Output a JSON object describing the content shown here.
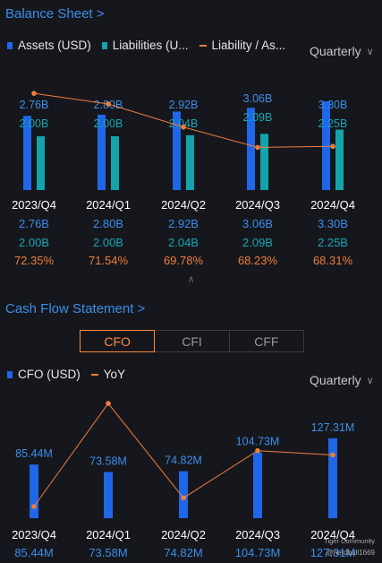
{
  "balance_sheet": {
    "title": "Balance Sheet >",
    "legend": {
      "assets": "Assets (USD)",
      "liabilities": "Liabilities (U...",
      "ratio": "Liability / As..."
    },
    "period_selector": "Quarterly",
    "colors": {
      "assets": "#1f66e8",
      "liabilities": "#14a3ad",
      "ratio": "#ef7e3c",
      "value_blue": "#3b8eea",
      "value_teal": "#18a7b3"
    },
    "quarters": [
      "2023/Q4",
      "2024/Q1",
      "2024/Q2",
      "2024/Q3",
      "2024/Q4"
    ],
    "assets_labels": [
      "2.76B",
      "2.80B",
      "2.92B",
      "3.06B",
      "3.30B"
    ],
    "liabilities_labels": [
      "2.00B",
      "2.00B",
      "2.04B",
      "2.09B",
      "2.25B"
    ],
    "ratio_labels": [
      "72.35%",
      "71.54%",
      "69.78%",
      "68.23%",
      "68.31%"
    ]
  },
  "collapse_icon": "chevron-up-icon",
  "cash_flow": {
    "title": "Cash Flow Statement >",
    "tabs": [
      "CFO",
      "CFI",
      "CFF"
    ],
    "active_tab": "CFO",
    "legend": {
      "cfo": "CFO (USD)",
      "yoy": "YoY"
    },
    "period_selector": "Quarterly",
    "quarters": [
      "2023/Q4",
      "2024/Q1",
      "2024/Q2",
      "2024/Q3",
      "2024/Q4"
    ],
    "cfo_labels": [
      "85.44M",
      "73.58M",
      "74.82M",
      "104.73M",
      "127.31M"
    ]
  },
  "chart_data": [
    {
      "type": "bar",
      "categories": [
        "2023/Q4",
        "2024/Q1",
        "2024/Q2",
        "2024/Q3",
        "2024/Q4"
      ],
      "series": [
        {
          "name": "Assets (USD)",
          "values": [
            2.76,
            2.8,
            2.92,
            3.06,
            3.3
          ],
          "unit": "B"
        },
        {
          "name": "Liabilities (U...",
          "values": [
            2.0,
            2.0,
            2.04,
            2.09,
            2.25
          ],
          "unit": "B"
        },
        {
          "name": "Liability / As...",
          "type": "line",
          "values": [
            72.35,
            71.54,
            69.78,
            68.23,
            68.31
          ],
          "unit": "%"
        }
      ]
    },
    {
      "type": "bar",
      "categories": [
        "2023/Q4",
        "2024/Q1",
        "2024/Q2",
        "2024/Q3",
        "2024/Q4"
      ],
      "series": [
        {
          "name": "CFO (USD)",
          "values": [
            85.44,
            73.58,
            74.82,
            104.73,
            127.31
          ],
          "unit": "M"
        },
        {
          "name": "YoY",
          "type": "line",
          "values": [
            -60,
            60,
            -50,
            5,
            0
          ]
        }
      ]
    }
  ],
  "watermark": {
    "line1": "Tiger Community",
    "line2": "@nerdbull1669"
  }
}
